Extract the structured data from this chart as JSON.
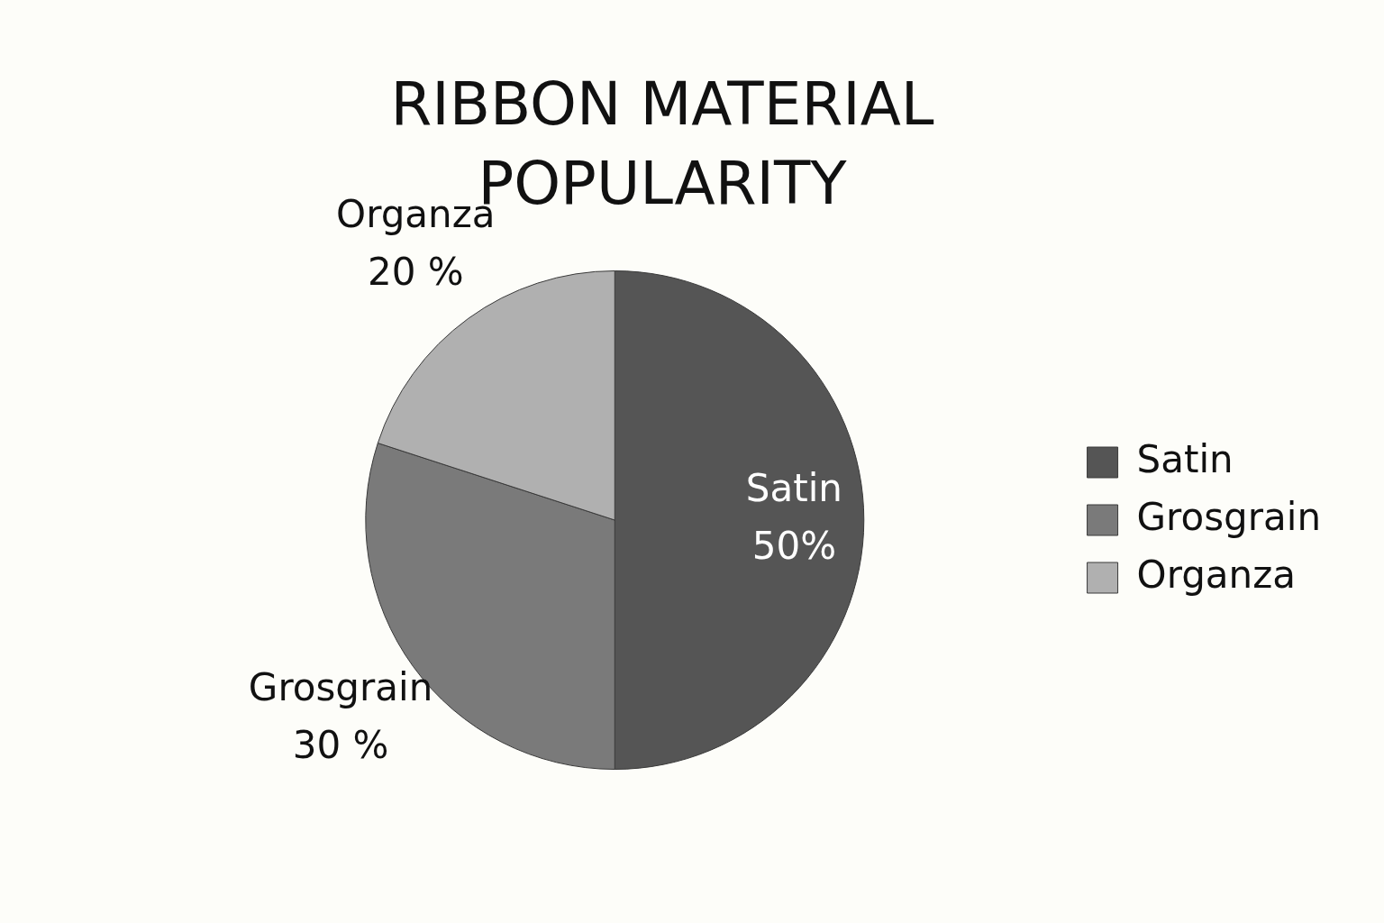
{
  "chart_data": {
    "type": "pie",
    "title": "RIBBON MATERIAL POPULARITY",
    "categories": [
      "Satin",
      "Grosgrain",
      "Organza"
    ],
    "values": [
      50,
      30,
      20
    ],
    "value_labels": [
      "50%",
      "30 %",
      "20 %"
    ],
    "colors": [
      "#555555",
      "#7a7a7a",
      "#b0b0b0"
    ],
    "legend": "right"
  }
}
